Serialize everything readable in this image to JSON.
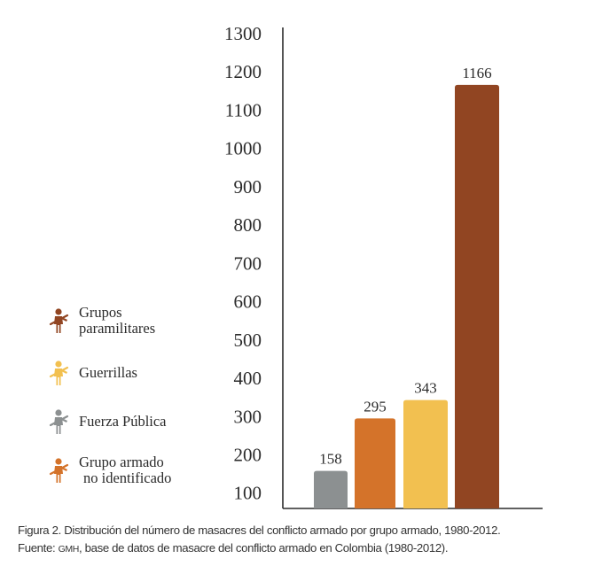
{
  "chart_data": {
    "type": "bar",
    "title": "",
    "xlabel": "",
    "ylabel": "",
    "ylim": [
      60,
      1300
    ],
    "y_ticks": [
      100,
      200,
      300,
      400,
      500,
      600,
      700,
      800,
      900,
      1000,
      1100,
      1200,
      1300
    ],
    "categories": [
      "Fuerza Pública",
      "Grupo armado no identificado",
      "Guerrillas",
      "Grupos paramilitares"
    ],
    "values": [
      158,
      295,
      343,
      1166
    ],
    "colors": [
      "#8c9091",
      "#d4732a",
      "#f2c050",
      "#914522"
    ],
    "legend_position": "left",
    "legend": [
      {
        "lines": [
          "Grupos",
          "paramilitares"
        ],
        "color": "#914522",
        "icon": "armed-person-icon"
      },
      {
        "lines": [
          "Guerrillas"
        ],
        "color": "#f2c050",
        "icon": "armed-person-icon"
      },
      {
        "lines": [
          "Fuerza Pública"
        ],
        "color": "#8c9091",
        "icon": "armed-person-icon"
      },
      {
        "lines": [
          "Grupo armado",
          "no identificado"
        ],
        "color": "#d4732a",
        "icon": "armed-person-icon"
      }
    ]
  },
  "caption": {
    "line1": "Figura 2. Distribución del número de masacres del conflicto armado por grupo armado, 1980-2012.",
    "line2_prefix": "Fuente: ",
    "line2_abbr": "GMH",
    "line2_suffix": ", base de datos de masacre del conflicto armado en Colombia (1980-2012)."
  }
}
